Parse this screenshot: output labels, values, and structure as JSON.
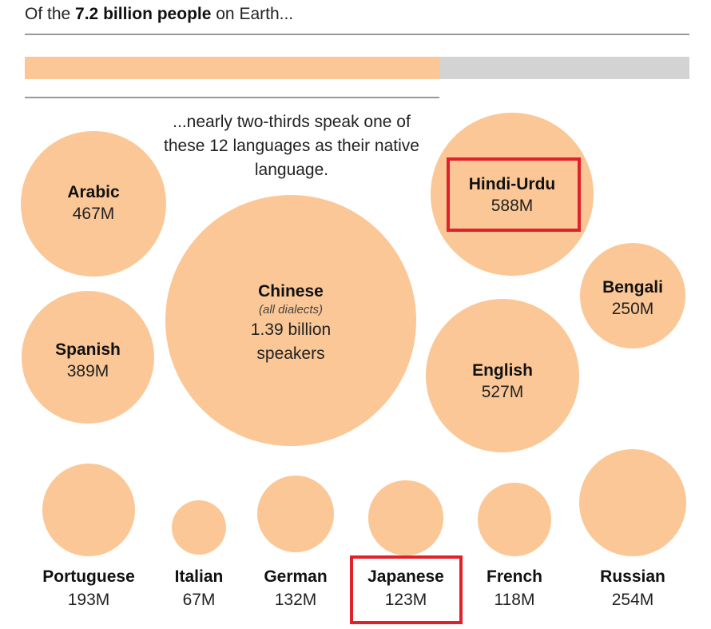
{
  "header": {
    "prefix": "Of the",
    "emphasis": "7.2 billion people",
    "suffix": "on Earth..."
  },
  "subtitle": "...nearly two-thirds speak one of these 12 languages as their native language.",
  "share_bar": {
    "fraction": 0.624,
    "fill_color": "#fbc796",
    "track_color": "#d3d3d3"
  },
  "colors": {
    "bubble": "#fbc796",
    "highlight": "#e0202a"
  },
  "chart_data": {
    "type": "bubble",
    "title": "Of the 7.2 billion people on Earth...",
    "subtitle": "...nearly two-thirds speak one of these 12 languages as their native language.",
    "series": [
      {
        "name": "Chinese",
        "note": "(all dialects)",
        "label": "1.39 billion speakers",
        "value": 1390
      },
      {
        "name": "Hindi-Urdu",
        "label": "588M",
        "value": 588,
        "highlighted": true
      },
      {
        "name": "English",
        "label": "527M",
        "value": 527
      },
      {
        "name": "Arabic",
        "label": "467M",
        "value": 467
      },
      {
        "name": "Spanish",
        "label": "389M",
        "value": 389
      },
      {
        "name": "Russian",
        "label": "254M",
        "value": 254
      },
      {
        "name": "Bengali",
        "label": "250M",
        "value": 250
      },
      {
        "name": "Portuguese",
        "label": "193M",
        "value": 193
      },
      {
        "name": "German",
        "label": "132M",
        "value": 132
      },
      {
        "name": "Japanese",
        "label": "123M",
        "value": 123,
        "highlighted": true
      },
      {
        "name": "French",
        "label": "118M",
        "value": 118
      },
      {
        "name": "Italian",
        "label": "67M",
        "value": 67
      }
    ],
    "unit": "millions of native speakers"
  }
}
